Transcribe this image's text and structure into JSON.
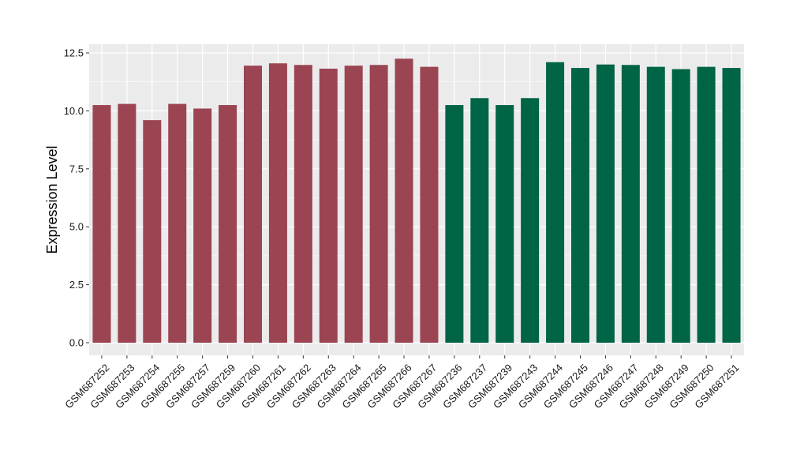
{
  "chart_data": {
    "type": "bar",
    "title": "",
    "xlabel": "",
    "ylabel": "Expression Level",
    "ylim": [
      0,
      12.5
    ],
    "yticks": [
      0,
      2.5,
      5,
      7.5,
      10,
      12.5
    ],
    "ytick_labels": [
      "0.0",
      "2.5",
      "5.0",
      "7.5",
      "10.0",
      "12.5"
    ],
    "grid": true,
    "legend": "none",
    "colors": {
      "group1": "#9b4452",
      "group2": "#006446",
      "panel": "#ebebeb",
      "grid": "#ffffff"
    },
    "categories": [
      "GSM687252",
      "GSM687253",
      "GSM687254",
      "GSM687255",
      "GSM687257",
      "GSM687259",
      "GSM687260",
      "GSM687261",
      "GSM687262",
      "GSM687263",
      "GSM687264",
      "GSM687265",
      "GSM687266",
      "GSM687267",
      "GSM687236",
      "GSM687237",
      "GSM687239",
      "GSM687243",
      "GSM687244",
      "GSM687245",
      "GSM687246",
      "GSM687247",
      "GSM687248",
      "GSM687249",
      "GSM687250",
      "GSM687251"
    ],
    "values": [
      10.25,
      10.3,
      9.6,
      10.3,
      10.1,
      10.25,
      11.95,
      12.05,
      11.98,
      11.82,
      11.95,
      11.98,
      12.25,
      11.9,
      10.25,
      10.55,
      10.25,
      10.55,
      12.1,
      11.85,
      12.0,
      11.98,
      11.9,
      11.8,
      11.9,
      11.85
    ],
    "groups": [
      "group1",
      "group1",
      "group1",
      "group1",
      "group1",
      "group1",
      "group1",
      "group1",
      "group1",
      "group1",
      "group1",
      "group1",
      "group1",
      "group1",
      "group2",
      "group2",
      "group2",
      "group2",
      "group2",
      "group2",
      "group2",
      "group2",
      "group2",
      "group2",
      "group2",
      "group2"
    ]
  }
}
